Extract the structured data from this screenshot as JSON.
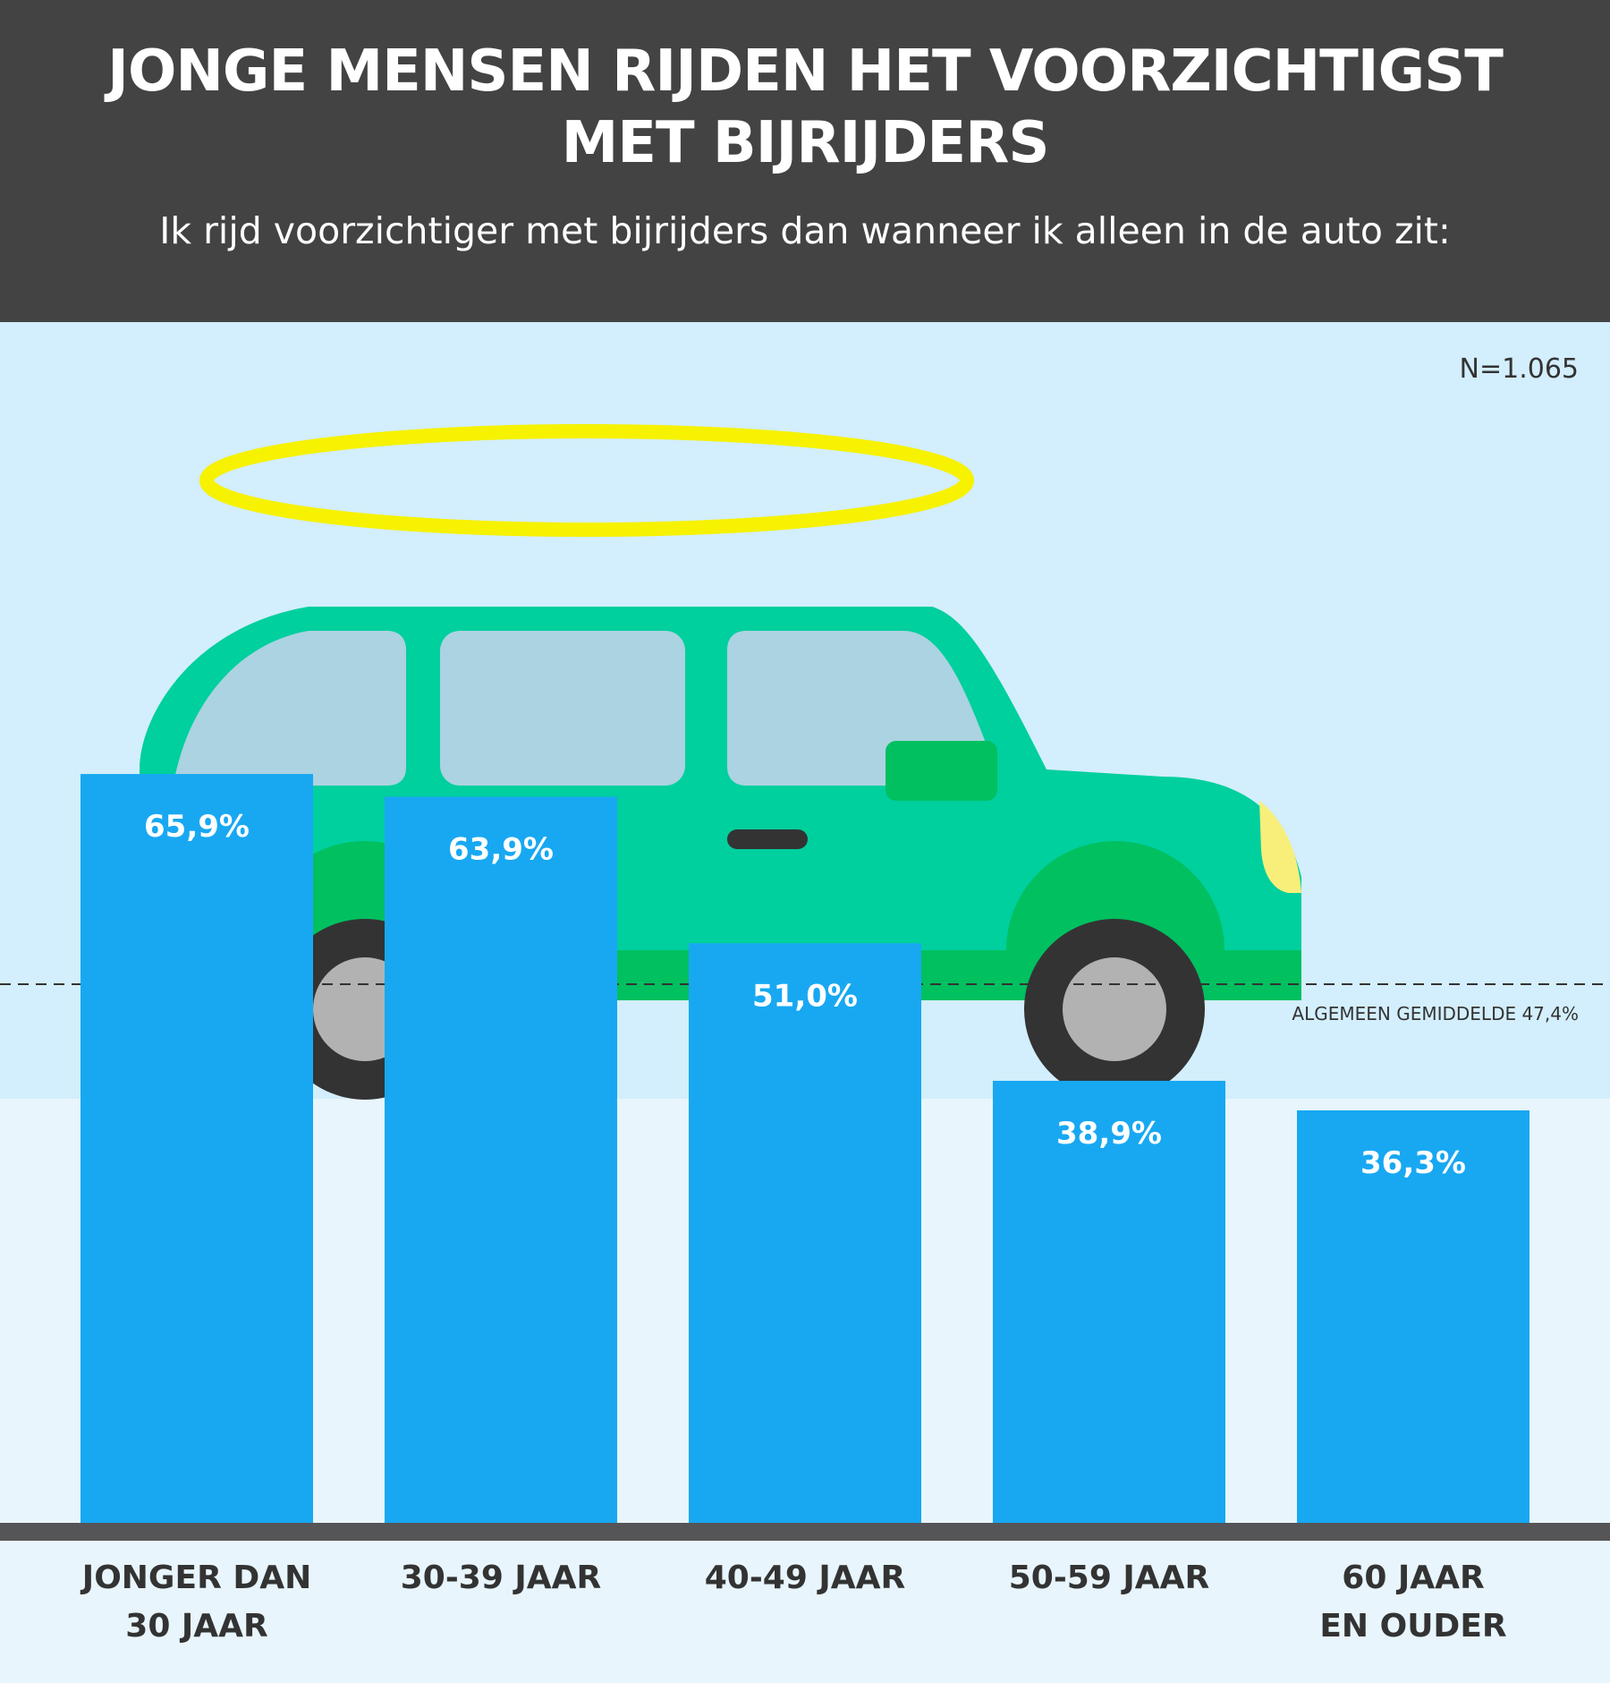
{
  "header": {
    "title": "JONGE MENSEN RIJDEN HET VOORZICHTIGST MET BIJRIJDERS",
    "subtitle": "Ik rijd voorzichtiger met bijrijders dan wanneer ik alleen in de auto zit:"
  },
  "sample_note": "N=1.065",
  "colors": {
    "header_bg": "#434343",
    "sky_upper": "#d3eefc",
    "sky_lower": "#e8f5fc",
    "bar": "#18a8f2",
    "baseline": "#555558",
    "car_body": "#00cf9e",
    "car_lower": "#00c060",
    "window": "#abd3e1",
    "halo": "#f6f200",
    "taillight": "#ee1c24",
    "headlight": "#f7ef7a"
  },
  "chart_data": {
    "type": "bar",
    "title": "JONGE MENSEN RIJDEN HET VOORZICHTIGST MET BIJRIJDERS",
    "subtitle": "Ik rijd voorzichtiger met bijrijders dan wanneer ik alleen in de auto zit:",
    "categories": [
      [
        "JONGER DAN",
        "30 JAAR"
      ],
      [
        "30-39 JAAR"
      ],
      [
        "40-49 JAAR"
      ],
      [
        "50-59 JAAR"
      ],
      [
        "60 JAAR",
        "EN OUDER"
      ]
    ],
    "values": [
      65.9,
      63.9,
      51.0,
      38.9,
      36.3
    ],
    "value_labels": [
      "65,9%",
      "63,9%",
      "51,0%",
      "38,9%",
      "36,3%"
    ],
    "unit": "%",
    "ylim": [
      0,
      100
    ],
    "grid": false,
    "legend": "none",
    "reference_line": {
      "value": 47.4,
      "label": "ALGEMEEN GEMIDDELDE 47,4%",
      "style": "dashed"
    }
  },
  "illustration": [
    "car-icon",
    "halo-icon"
  ]
}
